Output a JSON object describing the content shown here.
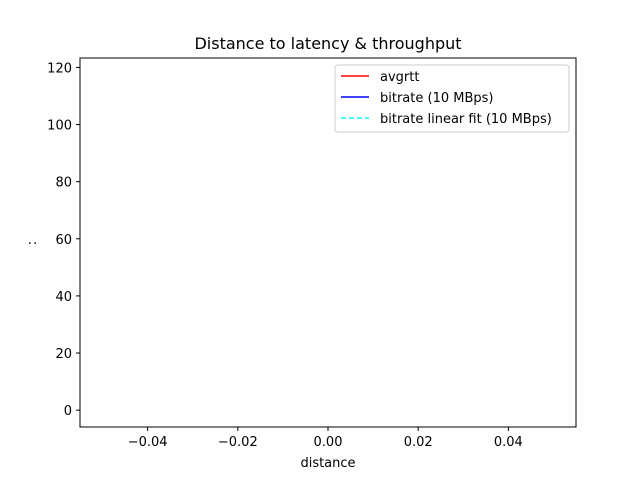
{
  "chart_data": {
    "type": "line",
    "title": "Distance to latency & throughput",
    "xlabel": "distance",
    "ylabel": ":",
    "xlim": [
      -0.055,
      0.055
    ],
    "ylim": [
      -5.9,
      123.3
    ],
    "xticks": [
      -0.04,
      -0.02,
      0.0,
      0.02,
      0.04
    ],
    "xtick_labels": [
      "−0.04",
      "−0.02",
      "0.00",
      "0.02",
      "0.04"
    ],
    "yticks": [
      0,
      20,
      40,
      60,
      80,
      100,
      120
    ],
    "ytick_labels": [
      "0",
      "20",
      "40",
      "60",
      "80",
      "100",
      "120"
    ],
    "grid": false,
    "legend_position": "upper right",
    "series": [
      {
        "name": "avgrtt",
        "color": "#ff0000",
        "linestyle": "solid",
        "x": [],
        "y": []
      },
      {
        "name": "bitrate (10 MBps)",
        "color": "#0000ff",
        "linestyle": "solid",
        "x": [],
        "y": []
      },
      {
        "name": "bitrate linear fit (10 MBps)",
        "color": "#00ffff",
        "linestyle": "dashed",
        "x": [],
        "y": []
      }
    ]
  }
}
